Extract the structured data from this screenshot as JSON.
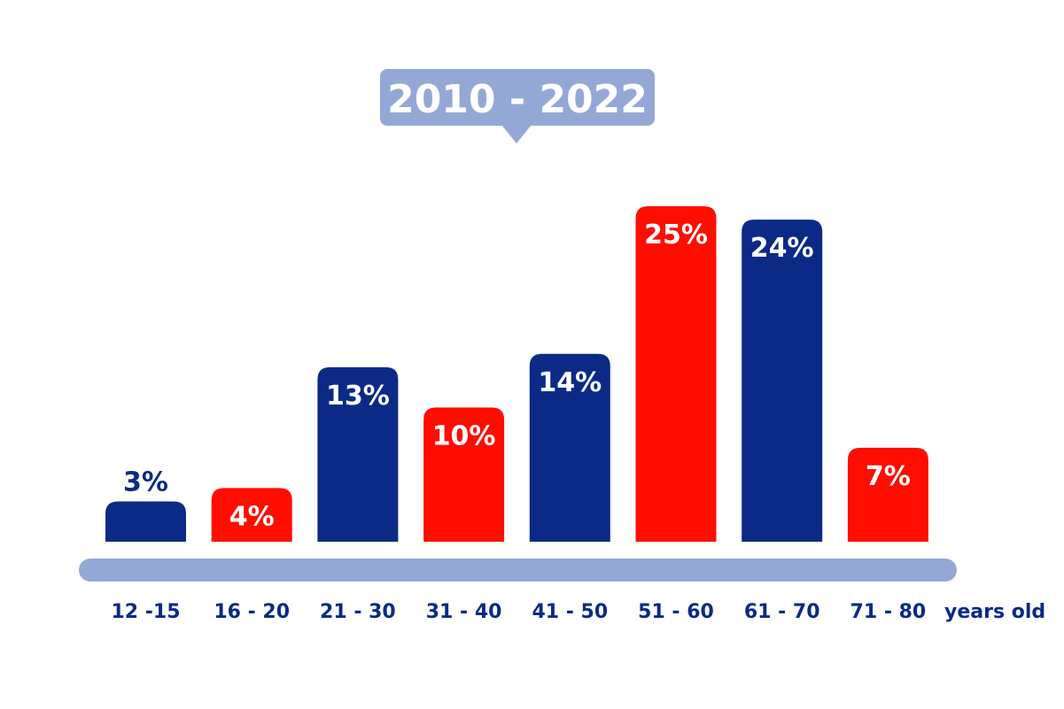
{
  "chart_data": {
    "type": "bar",
    "title": "2010 - 2022",
    "categories": [
      "12 -15",
      "16 - 20",
      "21 - 30",
      "31 - 40",
      "41 - 50",
      "51 - 60",
      "61 - 70",
      "71 - 80"
    ],
    "values": [
      3,
      4,
      13,
      10,
      14,
      25,
      24,
      7
    ],
    "value_labels": [
      "3%",
      "4%",
      "13%",
      "10%",
      "14%",
      "25%",
      "24%",
      "7%"
    ],
    "xlabel": "years old",
    "ylabel": "",
    "ylim": [
      0,
      25
    ],
    "grid": false,
    "legend": "none",
    "bar_colors": [
      "#0a2a85",
      "#ff0d00",
      "#0a2a85",
      "#ff0d00",
      "#0a2a85",
      "#ff0d00",
      "#0a2a85",
      "#ff0d00"
    ]
  },
  "colors": {
    "navy": "#0a2a85",
    "red": "#ff0d00",
    "axis": "#94a8d6",
    "title_bg": "#94a8d6",
    "white": "#ffffff"
  }
}
